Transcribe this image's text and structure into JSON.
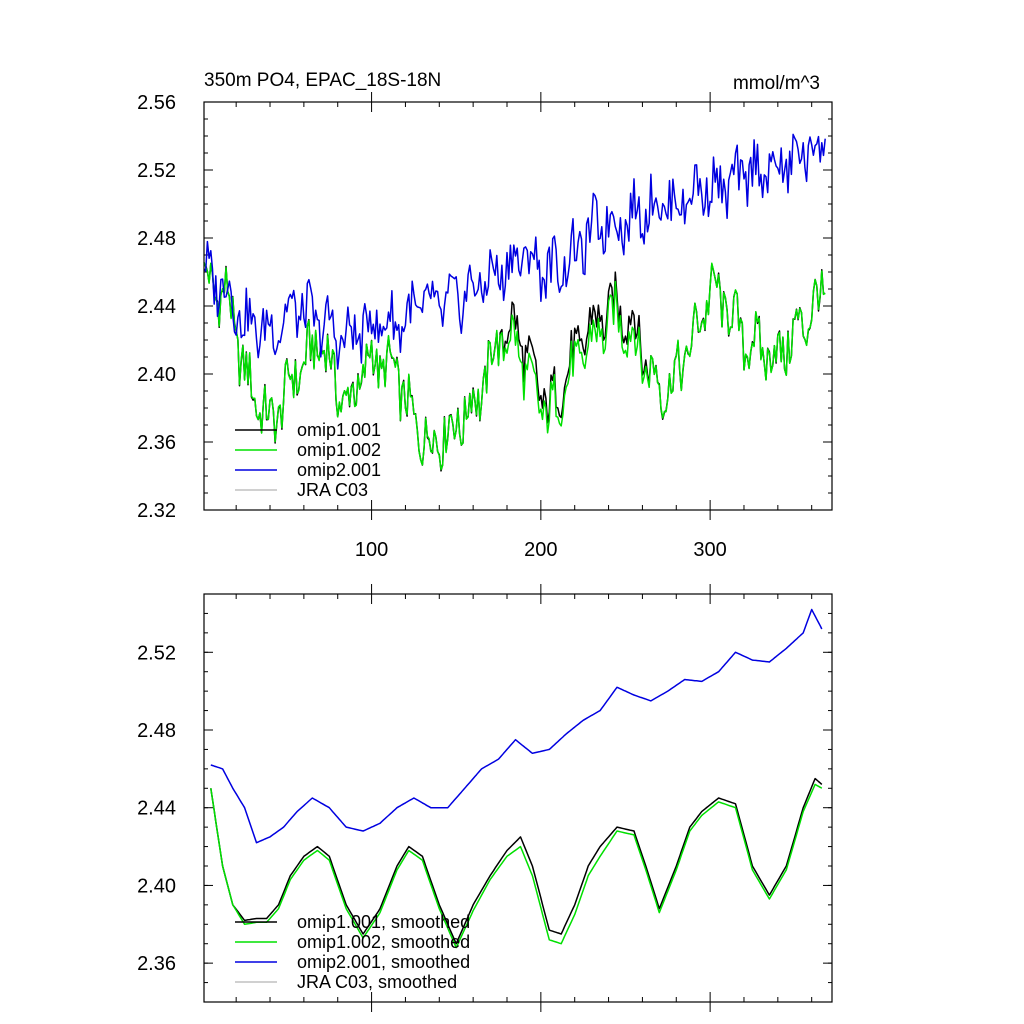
{
  "chart_data": [
    {
      "type": "line",
      "title": "350m PO4, EPAC_18S-18N",
      "units": "mmol/m^3",
      "xlim": [
        1,
        372
      ],
      "ylim": [
        2.32,
        2.56
      ],
      "yticks": [
        "2.32",
        "2.36",
        "2.40",
        "2.44",
        "2.48",
        "2.52",
        "2.56"
      ],
      "xticks": [
        "100",
        "200",
        "300"
      ],
      "legend_position": "bottom-left",
      "series": [
        {
          "name": "omip1.001",
          "color": "#000000",
          "x": [
            1,
            15,
            25,
            40,
            55,
            70,
            85,
            100,
            115,
            125,
            135,
            150,
            165,
            175,
            185,
            195,
            205,
            215,
            230,
            245,
            255,
            265,
            275,
            290,
            300,
            310,
            320,
            340,
            355,
            368
          ],
          "y": [
            2.455,
            2.445,
            2.4,
            2.37,
            2.4,
            2.42,
            2.38,
            2.41,
            2.4,
            2.37,
            2.36,
            2.37,
            2.39,
            2.42,
            2.43,
            2.4,
            2.38,
            2.4,
            2.43,
            2.44,
            2.43,
            2.4,
            2.39,
            2.42,
            2.45,
            2.44,
            2.42,
            2.41,
            2.43,
            2.45
          ]
        },
        {
          "name": "omip1.002",
          "color": "#00e000",
          "x": [
            1,
            15,
            25,
            40,
            55,
            70,
            85,
            100,
            115,
            125,
            135,
            150,
            165,
            175,
            185,
            195,
            205,
            215,
            230,
            245,
            255,
            265,
            275,
            290,
            300,
            310,
            320,
            340,
            355,
            368
          ],
          "y": [
            2.455,
            2.445,
            2.4,
            2.37,
            2.4,
            2.42,
            2.38,
            2.41,
            2.4,
            2.37,
            2.36,
            2.37,
            2.39,
            2.42,
            2.42,
            2.39,
            2.375,
            2.395,
            2.42,
            2.435,
            2.42,
            2.4,
            2.39,
            2.42,
            2.45,
            2.44,
            2.42,
            2.41,
            2.43,
            2.45
          ]
        },
        {
          "name": "omip2.001",
          "color": "#0000e0",
          "x": [
            1,
            15,
            25,
            40,
            55,
            70,
            85,
            100,
            115,
            130,
            145,
            160,
            175,
            190,
            205,
            220,
            235,
            250,
            265,
            280,
            295,
            310,
            325,
            340,
            355,
            368
          ],
          "y": [
            2.46,
            2.45,
            2.43,
            2.425,
            2.44,
            2.43,
            2.42,
            2.43,
            2.43,
            2.44,
            2.44,
            2.45,
            2.46,
            2.47,
            2.46,
            2.47,
            2.49,
            2.49,
            2.5,
            2.5,
            2.51,
            2.51,
            2.52,
            2.52,
            2.53,
            2.535
          ]
        },
        {
          "name": "JRA C03",
          "color": "#c0c0c0",
          "x": [],
          "y": []
        }
      ]
    },
    {
      "type": "line",
      "title": "",
      "xlim": [
        1,
        372
      ],
      "ylim": [
        2.34,
        2.55
      ],
      "yticks": [
        "2.36",
        "2.40",
        "2.44",
        "2.48",
        "2.52"
      ],
      "xticks": [],
      "legend_position": "bottom-left",
      "series": [
        {
          "name": "omip1.001, smoothed",
          "color": "#000000",
          "x": [
            5,
            12,
            18,
            25,
            32,
            38,
            45,
            52,
            60,
            68,
            75,
            85,
            95,
            105,
            115,
            122,
            130,
            140,
            150,
            160,
            170,
            180,
            188,
            195,
            205,
            212,
            220,
            228,
            235,
            245,
            255,
            262,
            270,
            280,
            288,
            295,
            305,
            315,
            325,
            335,
            345,
            355,
            362,
            366
          ],
          "y": [
            2.45,
            2.41,
            2.39,
            2.382,
            2.383,
            2.383,
            2.39,
            2.405,
            2.415,
            2.42,
            2.415,
            2.39,
            2.375,
            2.388,
            2.41,
            2.42,
            2.415,
            2.39,
            2.37,
            2.39,
            2.405,
            2.418,
            2.425,
            2.41,
            2.377,
            2.375,
            2.39,
            2.41,
            2.42,
            2.43,
            2.428,
            2.41,
            2.388,
            2.41,
            2.43,
            2.438,
            2.445,
            2.442,
            2.41,
            2.395,
            2.41,
            2.44,
            2.455,
            2.452
          ]
        },
        {
          "name": "omip1.002, smoothed",
          "color": "#00e000",
          "x": [
            5,
            12,
            18,
            25,
            32,
            38,
            45,
            52,
            60,
            68,
            75,
            85,
            95,
            105,
            115,
            122,
            130,
            140,
            150,
            160,
            170,
            180,
            188,
            195,
            205,
            212,
            220,
            228,
            235,
            245,
            255,
            262,
            270,
            280,
            288,
            295,
            305,
            315,
            325,
            335,
            345,
            355,
            362,
            366
          ],
          "y": [
            2.45,
            2.41,
            2.39,
            2.38,
            2.381,
            2.381,
            2.388,
            2.403,
            2.413,
            2.418,
            2.413,
            2.388,
            2.373,
            2.386,
            2.408,
            2.418,
            2.413,
            2.388,
            2.368,
            2.387,
            2.403,
            2.415,
            2.42,
            2.405,
            2.372,
            2.37,
            2.385,
            2.405,
            2.415,
            2.428,
            2.426,
            2.408,
            2.386,
            2.408,
            2.428,
            2.436,
            2.443,
            2.44,
            2.408,
            2.393,
            2.408,
            2.438,
            2.452,
            2.45
          ]
        },
        {
          "name": "omip2.001, smoothed",
          "color": "#0000e0",
          "x": [
            5,
            12,
            18,
            25,
            32,
            40,
            48,
            56,
            65,
            75,
            85,
            95,
            105,
            115,
            125,
            135,
            145,
            155,
            165,
            175,
            185,
            195,
            205,
            215,
            225,
            235,
            245,
            255,
            265,
            275,
            285,
            295,
            305,
            315,
            325,
            335,
            345,
            355,
            360,
            366
          ],
          "y": [
            2.462,
            2.46,
            2.45,
            2.44,
            2.422,
            2.425,
            2.43,
            2.438,
            2.445,
            2.44,
            2.43,
            2.428,
            2.432,
            2.44,
            2.445,
            2.44,
            2.44,
            2.45,
            2.46,
            2.465,
            2.475,
            2.468,
            2.47,
            2.478,
            2.485,
            2.49,
            2.502,
            2.498,
            2.495,
            2.5,
            2.506,
            2.505,
            2.51,
            2.52,
            2.516,
            2.515,
            2.522,
            2.53,
            2.542,
            2.532
          ]
        },
        {
          "name": "JRA C03, smoothed",
          "color": "#c0c0c0",
          "x": [],
          "y": []
        }
      ]
    }
  ]
}
